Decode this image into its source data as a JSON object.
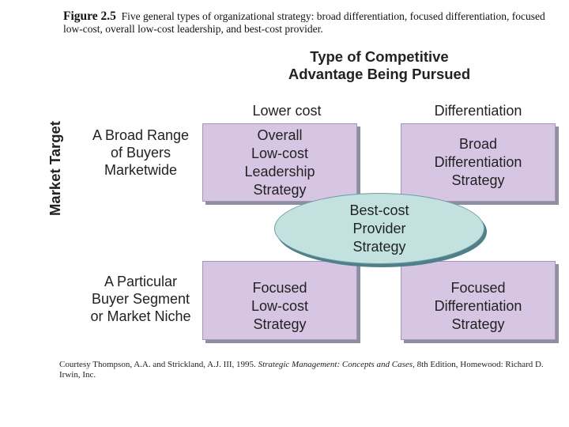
{
  "caption": {
    "label": "Figure 2.5",
    "text": "Five general types of organizational strategy: broad differentiation, focused differentiation, focused low-cost, overall low-cost leadership, and best-cost provider."
  },
  "diagram": {
    "top_title_line1": "Type of Competitive",
    "top_title_line2": "Advantage Being Pursued",
    "columns": [
      "Lower cost",
      "Differentiation"
    ],
    "side_title": "Market Target",
    "rows": [
      "A Broad Range\nof Buyers\nMarketwide",
      "A Particular\nBuyer Segment\nor Market Niche"
    ],
    "cells": {
      "broad_lower_cost": "Overall\nLow-cost\nLeadership\nStrategy",
      "broad_differentiation": "Broad\nDifferentiation\nStrategy",
      "niche_lower_cost": "Focused\nLow-cost\nStrategy",
      "niche_differentiation": "Focused\nDifferentiation\nStrategy"
    },
    "center": "Best-cost\nProvider\nStrategy"
  },
  "source": {
    "before": "Courtesy Thompson, A.A. and Strickland, A.J. III, 1995. ",
    "title": "Strategic Management: Concepts and Cases,",
    "after": " 8th Edition, Homewood: Richard D. Irwin, Inc."
  }
}
